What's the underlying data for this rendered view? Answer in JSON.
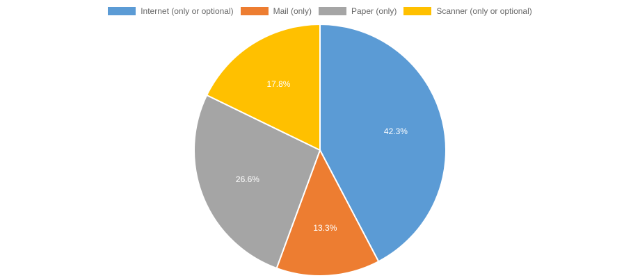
{
  "chart_data": {
    "type": "pie",
    "title": "",
    "legend_position": "top",
    "slices": [
      {
        "label": "Internet (only or optional)",
        "value": 42.3,
        "display": "42.3%",
        "color": "#5b9bd5"
      },
      {
        "label": "Mail (only)",
        "value": 13.3,
        "display": "13.3%",
        "color": "#ed7d31"
      },
      {
        "label": "Paper (only)",
        "value": 26.6,
        "display": "26.6%",
        "color": "#a5a5a5"
      },
      {
        "label": "Scanner (only or optional)",
        "value": 17.8,
        "display": "17.8%",
        "color": "#ffc000"
      }
    ]
  }
}
